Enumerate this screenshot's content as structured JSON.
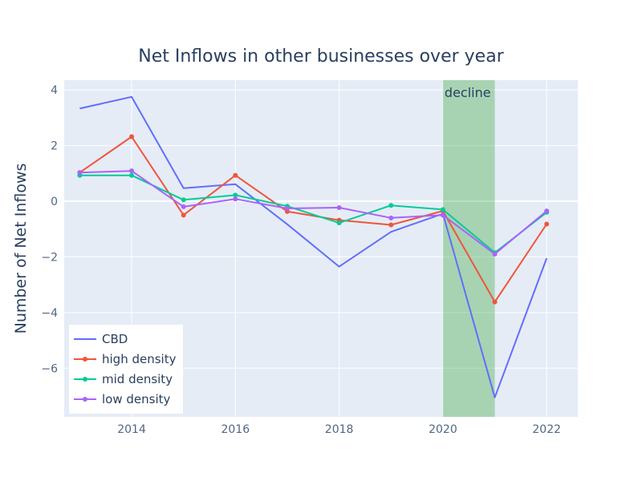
{
  "chart_data": {
    "type": "line",
    "title": "Net Inflows in other businesses over year",
    "xlabel": "",
    "ylabel": "Number of Net Inflows",
    "xlim": [
      2012.7,
      2022.6
    ],
    "ylim": [
      -7.75,
      4.35
    ],
    "x_ticks": [
      2014,
      2016,
      2018,
      2020,
      2022
    ],
    "y_ticks": [
      4,
      2,
      0,
      -2,
      -4,
      -6
    ],
    "x_tick_labels": [
      "2014",
      "2016",
      "2018",
      "2020",
      "2022"
    ],
    "y_tick_labels": [
      "4",
      "2",
      "0",
      "−2",
      "−4",
      "−6"
    ],
    "grid": true,
    "legend_position": "bottom-left",
    "x": [
      2013,
      2014,
      2015,
      2016,
      2017,
      2018,
      2019,
      2020,
      2021,
      2022
    ],
    "series": [
      {
        "name": "CBD",
        "color": "#636efa",
        "markers": false,
        "values": [
          3.33,
          3.75,
          0.47,
          0.61,
          -0.83,
          -2.35,
          -1.1,
          -0.45,
          -7.05,
          -2.05
        ]
      },
      {
        "name": "high density",
        "color": "#ef553b",
        "markers": true,
        "values": [
          1.03,
          2.32,
          -0.5,
          0.93,
          -0.37,
          -0.68,
          -0.85,
          -0.35,
          -3.62,
          -0.82
        ]
      },
      {
        "name": "mid density",
        "color": "#00cc96",
        "markers": true,
        "values": [
          0.93,
          0.93,
          0.05,
          0.22,
          -0.18,
          -0.78,
          -0.15,
          -0.3,
          -1.85,
          -0.4
        ]
      },
      {
        "name": "low density",
        "color": "#ab63fa",
        "markers": true,
        "values": [
          1.03,
          1.09,
          -0.2,
          0.08,
          -0.26,
          -0.23,
          -0.6,
          -0.5,
          -1.9,
          -0.35
        ]
      }
    ],
    "annotation": {
      "label": "decline",
      "x_start": 2020,
      "x_end": 2021,
      "color": "#4caf50"
    }
  },
  "colors": {
    "plot_bg": "#e5ecf6",
    "grid": "#ffffff",
    "text": "#2a3f5f",
    "axis_text": "#506784"
  }
}
